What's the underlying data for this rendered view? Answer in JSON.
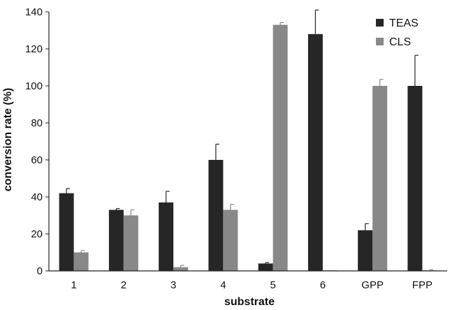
{
  "chart_data": {
    "type": "bar",
    "title": "",
    "xlabel": "substrate",
    "ylabel": "conversion rate (%)",
    "ylim": [
      0,
      140
    ],
    "yticks": [
      0,
      20,
      40,
      60,
      80,
      100,
      120,
      140
    ],
    "grid": false,
    "legend_position": "top-right",
    "categories": [
      "1",
      "2",
      "3",
      "4",
      "5",
      "6",
      "GPP",
      "FPP"
    ],
    "series": [
      {
        "name": "TEAS",
        "color": "#262626",
        "values": [
          42,
          33,
          37,
          60,
          4,
          128,
          22,
          100
        ],
        "errors": [
          2.5,
          0.7,
          6,
          8.5,
          0.5,
          13,
          3.5,
          16.5
        ]
      },
      {
        "name": "CLS",
        "color": "#888888",
        "values": [
          10,
          30,
          2,
          33,
          133,
          0.3,
          100,
          0.3
        ],
        "errors": [
          1,
          3,
          1,
          3,
          1.2,
          0,
          3.5,
          0.4
        ]
      }
    ]
  }
}
